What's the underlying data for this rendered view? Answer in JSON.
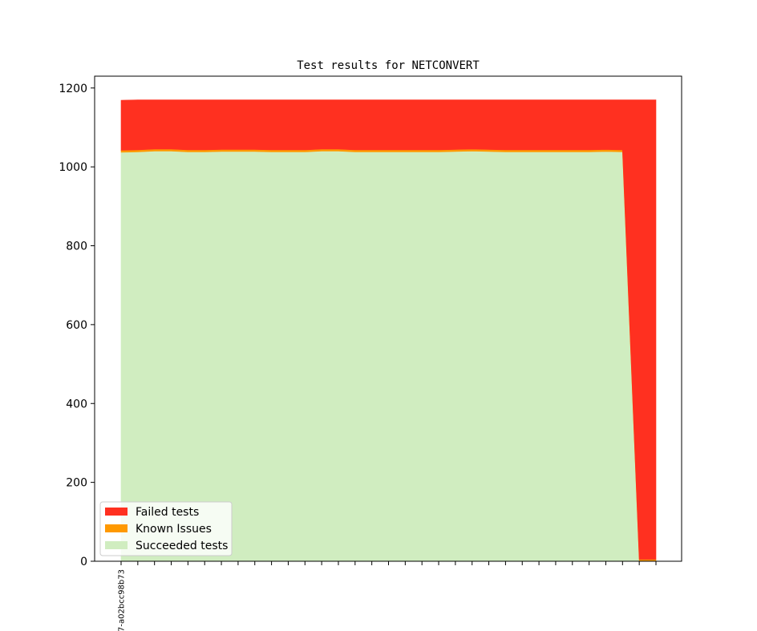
{
  "chart_data": {
    "type": "area",
    "title": "Test results for NETCONVERT",
    "xlabel": "",
    "ylabel": "",
    "ylim": [
      0,
      1230
    ],
    "yticks": [
      0,
      200,
      400,
      600,
      800,
      1000,
      1200
    ],
    "xtick_labels": [
      "7-a02bcc98b73"
    ],
    "grid": false,
    "legend_position": "lower-left",
    "colors": {
      "failed": "#ff3020",
      "known": "#ff9900",
      "succeeded": "#d0edc0",
      "axis": "#000000"
    },
    "series": [
      {
        "name": "Succeeded tests",
        "color": "#d0edc0",
        "values": [
          1037,
          1038,
          1040,
          1040,
          1038,
          1038,
          1039,
          1039,
          1039,
          1038,
          1038,
          1038,
          1040,
          1040,
          1038,
          1038,
          1038,
          1038,
          1038,
          1038,
          1039,
          1040,
          1039,
          1038,
          1038,
          1038,
          1038,
          1038,
          1038,
          1039,
          1038,
          0,
          0
        ]
      },
      {
        "name": "Known Issues",
        "color": "#ff9900",
        "values": [
          5,
          5,
          5,
          5,
          5,
          5,
          5,
          5,
          5,
          5,
          5,
          5,
          5,
          5,
          5,
          5,
          5,
          5,
          5,
          5,
          5,
          5,
          5,
          5,
          5,
          5,
          5,
          5,
          5,
          5,
          5,
          5,
          5
        ]
      },
      {
        "name": "Failed tests",
        "color": "#ff3020",
        "values": [
          127,
          127,
          125,
          125,
          127,
          127,
          126,
          126,
          126,
          127,
          127,
          127,
          125,
          125,
          127,
          127,
          127,
          127,
          127,
          127,
          126,
          125,
          126,
          127,
          127,
          127,
          127,
          127,
          127,
          126,
          127,
          1165,
          1165
        ]
      }
    ],
    "legend": [
      {
        "label": "Failed tests",
        "color": "#ff3020"
      },
      {
        "label": "Known Issues",
        "color": "#ff9900"
      },
      {
        "label": "Succeeded tests",
        "color": "#d0edc0"
      }
    ]
  }
}
